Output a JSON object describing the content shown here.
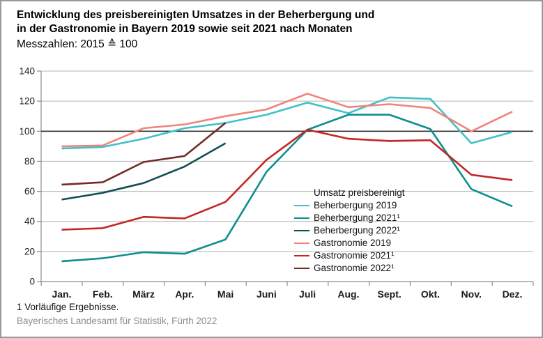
{
  "page": {
    "title_line1": "Entwicklung des preisbereinigten Umsatzes in der Beherbergung und",
    "title_line2": "in der Gastronomie in Bayern 2019 sowie seit 2021 nach Monaten",
    "subtitle": "Messzahlen: 2015 ≙ 100",
    "footnote": "1  Vorläufige Ergebnisse.",
    "source": "Bayerisches Landesamt für Statistik, Fürth 2022",
    "border_color": "#9a9a9a"
  },
  "chart_data": {
    "type": "line",
    "title": "Entwicklung des preisbereinigten Umsatzes in der Beherbergung und in der Gastronomie in Bayern 2019 sowie seit 2021 nach Monaten",
    "subtitle": "Messzahlen: 2015 ≙ 100",
    "categories": [
      "Jan.",
      "Feb.",
      "März",
      "Apr.",
      "Mai",
      "Juni",
      "Juli",
      "Aug.",
      "Sept.",
      "Okt.",
      "Nov.",
      "Dez."
    ],
    "ylim": [
      0,
      140
    ],
    "ytick_step": 20,
    "grid": true,
    "reference_line": 100,
    "reference_line_color": "#333333",
    "grid_color": "#b3b3b3",
    "legend_title": "Umsatz preisbereinigt",
    "legend_position": "inside-lower-right",
    "series": [
      {
        "name": "Beherbergung 2019",
        "color": "#40C1C7",
        "values": [
          88.5,
          89.5,
          95,
          102,
          105.5,
          111,
          119,
          112,
          122.5,
          121.5,
          92,
          99.5
        ]
      },
      {
        "name": "Beherbergung 2021¹",
        "color": "#0D8E8E",
        "values": [
          13.5,
          15.5,
          19.5,
          18.5,
          28,
          73,
          101,
          111,
          111,
          101.5,
          61.5,
          50
        ]
      },
      {
        "name": "Beherbergung 2022¹",
        "color": "#134F54",
        "values": [
          54.5,
          59,
          65.5,
          76.5,
          92,
          null,
          null,
          null,
          null,
          null,
          null,
          null
        ]
      },
      {
        "name": "Gastronomie 2019",
        "color": "#F0847C",
        "values": [
          90,
          90.5,
          102,
          104.5,
          110,
          114.5,
          125,
          116,
          118,
          115.5,
          100,
          113
        ]
      },
      {
        "name": "Gastronomie 2021¹",
        "color": "#C42625",
        "values": [
          34.5,
          35.5,
          43,
          42,
          53,
          81,
          101,
          95,
          93.5,
          94,
          71,
          67.5
        ]
      },
      {
        "name": "Gastronomie 2022¹",
        "color": "#722B26",
        "values": [
          64.5,
          66,
          79.5,
          83.5,
          105.5,
          null,
          null,
          null,
          null,
          null,
          null,
          null
        ]
      }
    ]
  }
}
